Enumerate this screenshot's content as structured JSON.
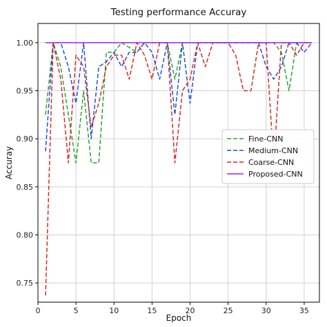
{
  "chart_data": {
    "type": "line",
    "title": "Testing performance Accuray",
    "xlabel": "Epoch",
    "ylabel": "Accuray",
    "xlim": [
      0,
      37
    ],
    "ylim": [
      0.73,
      1.02
    ],
    "xticks": [
      0,
      5,
      10,
      15,
      20,
      25,
      30,
      35
    ],
    "yticks": [
      0.75,
      0.8,
      0.85,
      0.9,
      0.95,
      1.0
    ],
    "ytick_labels": [
      "0.75",
      "0.80",
      "0.85",
      "0.90",
      "0.95",
      "1.00"
    ],
    "grid": true,
    "legend_position": "center-right",
    "series": [
      {
        "name": "Fine-CNN",
        "color": "#2ca02c",
        "dash": "dashed",
        "points": [
          [
            1,
            0.925
          ],
          [
            2,
            1.0
          ],
          [
            3,
            0.975
          ],
          [
            4,
            0.925
          ],
          [
            5,
            0.875
          ],
          [
            6,
            0.95
          ],
          [
            7,
            0.875
          ],
          [
            8,
            0.875
          ],
          [
            9,
            0.99
          ],
          [
            10,
            0.99
          ],
          [
            11,
            1.0
          ],
          [
            12,
            0.995
          ],
          [
            13,
            0.99
          ],
          [
            14,
            1.0
          ],
          [
            15,
            1.0
          ],
          [
            16,
            1.0
          ],
          [
            17,
            1.0
          ],
          [
            18,
            0.962
          ],
          [
            19,
            1.0
          ],
          [
            20,
            1.0
          ],
          [
            21,
            1.0
          ],
          [
            22,
            1.0
          ],
          [
            23,
            1.0
          ],
          [
            24,
            1.0
          ],
          [
            25,
            1.0
          ],
          [
            26,
            1.0
          ],
          [
            27,
            1.0
          ],
          [
            28,
            1.0
          ],
          [
            29,
            1.0
          ],
          [
            30,
            1.0
          ],
          [
            31,
            1.0
          ],
          [
            32,
            0.99
          ],
          [
            33,
            0.95
          ],
          [
            34,
            1.0
          ],
          [
            35,
            1.0
          ],
          [
            36,
            1.0
          ]
        ]
      },
      {
        "name": "Medium-CNN",
        "color": "#1f4fd6",
        "dash": "dashed",
        "points": [
          [
            1,
            0.887
          ],
          [
            2,
            1.0
          ],
          [
            3,
            1.0
          ],
          [
            4,
            0.975
          ],
          [
            5,
            0.937
          ],
          [
            6,
            1.0
          ],
          [
            7,
            0.9
          ],
          [
            8,
            0.975
          ],
          [
            9,
            0.98
          ],
          [
            10,
            0.99
          ],
          [
            11,
            0.975
          ],
          [
            12,
            0.99
          ],
          [
            13,
            0.99
          ],
          [
            14,
            1.0
          ],
          [
            15,
            0.99
          ],
          [
            16,
            0.962
          ],
          [
            17,
            1.0
          ],
          [
            18,
            0.925
          ],
          [
            19,
            1.0
          ],
          [
            20,
            0.937
          ],
          [
            21,
            1.0
          ],
          [
            22,
            1.0
          ],
          [
            23,
            1.0
          ],
          [
            24,
            1.0
          ],
          [
            25,
            1.0
          ],
          [
            26,
            1.0
          ],
          [
            27,
            1.0
          ],
          [
            28,
            1.0
          ],
          [
            29,
            1.0
          ],
          [
            30,
            0.975
          ],
          [
            31,
            0.962
          ],
          [
            32,
            0.975
          ],
          [
            33,
            1.0
          ],
          [
            34,
            1.0
          ],
          [
            35,
            0.99
          ],
          [
            36,
            1.0
          ]
        ]
      },
      {
        "name": "Coarse-CNN",
        "color": "#d62728",
        "dash": "dashed",
        "points": [
          [
            1,
            0.737
          ],
          [
            2,
            1.0
          ],
          [
            3,
            0.962
          ],
          [
            4,
            0.875
          ],
          [
            5,
            0.987
          ],
          [
            6,
            0.975
          ],
          [
            7,
            0.912
          ],
          [
            8,
            0.937
          ],
          [
            9,
            0.975
          ],
          [
            10,
            0.987
          ],
          [
            11,
            0.987
          ],
          [
            12,
            0.962
          ],
          [
            13,
            1.0
          ],
          [
            14,
            0.987
          ],
          [
            15,
            0.962
          ],
          [
            16,
            1.0
          ],
          [
            17,
            1.0
          ],
          [
            18,
            0.875
          ],
          [
            19,
            0.95
          ],
          [
            20,
            0.962
          ],
          [
            21,
            1.0
          ],
          [
            22,
            0.975
          ],
          [
            23,
            1.0
          ],
          [
            24,
            1.0
          ],
          [
            25,
            1.0
          ],
          [
            26,
            0.987
          ],
          [
            27,
            0.95
          ],
          [
            28,
            0.95
          ],
          [
            29,
            1.0
          ],
          [
            30,
            1.0
          ],
          [
            31,
            0.875
          ],
          [
            32,
            1.0
          ],
          [
            33,
            1.0
          ],
          [
            34,
            0.987
          ],
          [
            35,
            1.0
          ],
          [
            36,
            1.0
          ]
        ]
      },
      {
        "name": "Proposed-CNN",
        "color": "#a020f0",
        "dash": "solid",
        "points": [
          [
            1,
            1.0
          ],
          [
            2,
            1.0
          ],
          [
            3,
            1.0
          ],
          [
            4,
            1.0
          ],
          [
            5,
            1.0
          ],
          [
            6,
            1.0
          ],
          [
            7,
            1.0
          ],
          [
            8,
            1.0
          ],
          [
            9,
            1.0
          ],
          [
            10,
            1.0
          ],
          [
            11,
            1.0
          ],
          [
            12,
            1.0
          ],
          [
            13,
            1.0
          ],
          [
            14,
            1.0
          ],
          [
            15,
            1.0
          ],
          [
            16,
            1.0
          ],
          [
            17,
            1.0
          ],
          [
            18,
            1.0
          ],
          [
            19,
            1.0
          ],
          [
            20,
            1.0
          ],
          [
            21,
            1.0
          ],
          [
            22,
            1.0
          ],
          [
            23,
            1.0
          ],
          [
            24,
            1.0
          ],
          [
            25,
            1.0
          ],
          [
            26,
            1.0
          ],
          [
            27,
            1.0
          ],
          [
            28,
            1.0
          ],
          [
            29,
            1.0
          ],
          [
            30,
            1.0
          ],
          [
            31,
            1.0
          ],
          [
            32,
            1.0
          ],
          [
            33,
            1.0
          ],
          [
            34,
            1.0
          ],
          [
            35,
            1.0
          ],
          [
            36,
            1.0
          ]
        ]
      }
    ]
  }
}
